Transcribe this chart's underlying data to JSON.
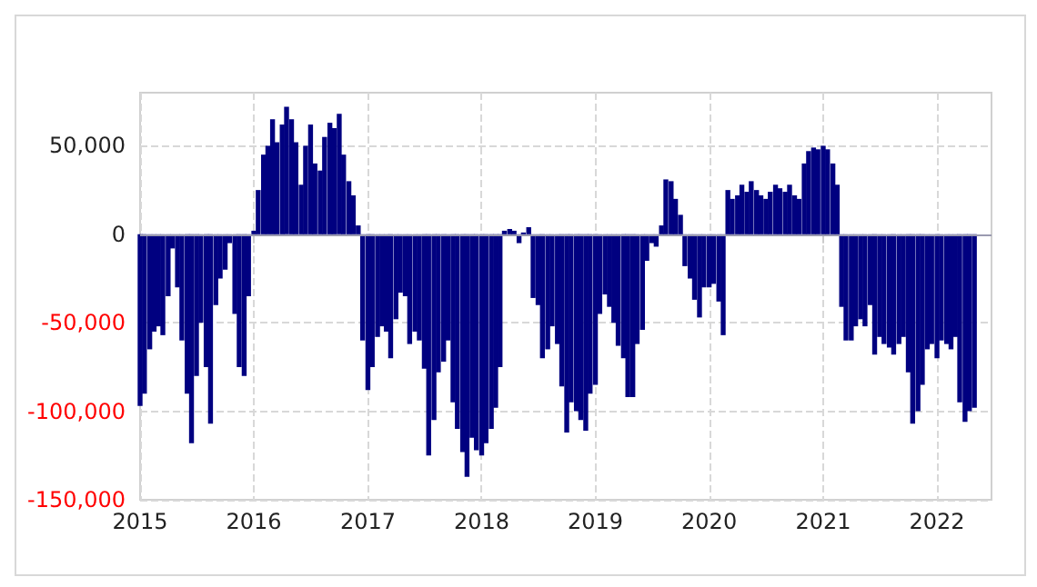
{
  "chart_data": {
    "type": "bar",
    "x": [
      "2015-01-01",
      "2015-01-15",
      "2015-02-01",
      "2015-02-15",
      "2015-03-01",
      "2015-03-15",
      "2015-04-01",
      "2015-04-15",
      "2015-05-01",
      "2015-05-15",
      "2015-06-01",
      "2015-06-15",
      "2015-07-01",
      "2015-07-15",
      "2015-08-01",
      "2015-08-15",
      "2015-09-01",
      "2015-09-15",
      "2015-10-01",
      "2015-10-15",
      "2015-11-01",
      "2015-11-15",
      "2015-12-01",
      "2015-12-15",
      "2016-01-01",
      "2016-01-15",
      "2016-02-01",
      "2016-02-15",
      "2016-03-01",
      "2016-03-15",
      "2016-04-01",
      "2016-04-15",
      "2016-05-01",
      "2016-05-15",
      "2016-06-01",
      "2016-06-15",
      "2016-07-01",
      "2016-07-15",
      "2016-08-01",
      "2016-08-15",
      "2016-09-01",
      "2016-09-15",
      "2016-10-01",
      "2016-10-15",
      "2016-11-01",
      "2016-11-15",
      "2016-12-01",
      "2016-12-15",
      "2017-01-01",
      "2017-01-15",
      "2017-02-01",
      "2017-02-15",
      "2017-03-01",
      "2017-03-15",
      "2017-04-01",
      "2017-04-15",
      "2017-05-01",
      "2017-05-15",
      "2017-06-01",
      "2017-06-15",
      "2017-07-01",
      "2017-07-15",
      "2017-08-01",
      "2017-08-15",
      "2017-09-01",
      "2017-09-15",
      "2017-10-01",
      "2017-10-15",
      "2017-11-01",
      "2017-11-15",
      "2017-12-01",
      "2017-12-15",
      "2018-01-01",
      "2018-01-15",
      "2018-02-01",
      "2018-02-15",
      "2018-03-01",
      "2018-03-15",
      "2018-04-01",
      "2018-04-15",
      "2018-05-01",
      "2018-05-15",
      "2018-06-01",
      "2018-06-15",
      "2018-07-01",
      "2018-07-15",
      "2018-08-01",
      "2018-08-15",
      "2018-09-01",
      "2018-09-15",
      "2018-10-01",
      "2018-10-15",
      "2018-11-01",
      "2018-11-15",
      "2018-12-01",
      "2018-12-15",
      "2019-01-01",
      "2019-01-15",
      "2019-02-01",
      "2019-02-15",
      "2019-03-01",
      "2019-03-15",
      "2019-04-01",
      "2019-04-15",
      "2019-05-01",
      "2019-05-15",
      "2019-06-01",
      "2019-06-15",
      "2019-07-01",
      "2019-07-15",
      "2019-08-01",
      "2019-08-15",
      "2019-09-01",
      "2019-09-15",
      "2019-10-01",
      "2019-10-15",
      "2019-11-01",
      "2019-11-15",
      "2019-12-01",
      "2019-12-15",
      "2020-01-01",
      "2020-01-15",
      "2020-02-01",
      "2020-02-15",
      "2020-03-01",
      "2020-03-15",
      "2020-04-01",
      "2020-04-15",
      "2020-05-01",
      "2020-05-15",
      "2020-06-01",
      "2020-06-15",
      "2020-07-01",
      "2020-07-15",
      "2020-08-01",
      "2020-08-15",
      "2020-09-01",
      "2020-09-15",
      "2020-10-01",
      "2020-10-15",
      "2020-11-01",
      "2020-11-15",
      "2020-12-01",
      "2020-12-15",
      "2021-01-01",
      "2021-01-15",
      "2021-02-01",
      "2021-02-15",
      "2021-03-01",
      "2021-03-15",
      "2021-04-01",
      "2021-04-15",
      "2021-05-01",
      "2021-05-15",
      "2021-06-01",
      "2021-06-15",
      "2021-07-01",
      "2021-07-15",
      "2021-08-01",
      "2021-08-15",
      "2021-09-01",
      "2021-09-15",
      "2021-10-01",
      "2021-10-15",
      "2021-11-01",
      "2021-11-15",
      "2021-12-01",
      "2021-12-15",
      "2022-01-01",
      "2022-01-15",
      "2022-02-01",
      "2022-02-15",
      "2022-03-01",
      "2022-03-15",
      "2022-04-01",
      "2022-04-15",
      "2022-05-01"
    ],
    "values": [
      -97000,
      -90000,
      -65000,
      -55000,
      -52000,
      -57000,
      -35000,
      -8000,
      -30000,
      -60000,
      -90000,
      -118000,
      -80000,
      -50000,
      -75000,
      -107000,
      -40000,
      -25000,
      -20000,
      -5000,
      -45000,
      -75000,
      -80000,
      -35000,
      2000,
      25000,
      45000,
      50000,
      65000,
      52000,
      62000,
      72000,
      65000,
      52000,
      28000,
      50000,
      62000,
      40000,
      36000,
      55000,
      63000,
      60000,
      68000,
      45000,
      30000,
      22000,
      5000,
      -60000,
      -88000,
      -75000,
      -58000,
      -52000,
      -55000,
      -70000,
      -48000,
      -33000,
      -35000,
      -62000,
      -55000,
      -60000,
      -76000,
      -125000,
      -105000,
      -78000,
      -72000,
      -60000,
      -95000,
      -110000,
      -123000,
      -137000,
      -115000,
      -122000,
      -125000,
      -118000,
      -110000,
      -98000,
      -75000,
      2000,
      3000,
      2000,
      -5000,
      1000,
      4000,
      -36000,
      -40000,
      -70000,
      -65000,
      -52000,
      -62000,
      -86000,
      -112000,
      -95000,
      -100000,
      -105000,
      -111000,
      -90000,
      -85000,
      -45000,
      -34000,
      -41000,
      -50000,
      -63000,
      -70000,
      -92000,
      -92000,
      -62000,
      -54000,
      -15000,
      -5000,
      -7000,
      5000,
      31000,
      30000,
      20000,
      11000,
      -18000,
      -25000,
      -37000,
      -47000,
      -30000,
      -30000,
      -28000,
      -38000,
      -57000,
      25000,
      20000,
      22000,
      28000,
      24000,
      30000,
      25000,
      22000,
      20000,
      24000,
      28000,
      26000,
      24000,
      28000,
      22000,
      20000,
      40000,
      47000,
      49000,
      48000,
      50000,
      48000,
      40000,
      28000,
      -41000,
      -60000,
      -60000,
      -52000,
      -48000,
      -52000,
      -40000,
      -68000,
      -58000,
      -62000,
      -64000,
      -68000,
      -62000,
      -58000,
      -78000,
      -107000,
      -100000,
      -85000,
      -65000,
      -62000,
      -70000,
      -60000,
      -62000,
      -65000,
      -58000,
      -95000,
      -106000,
      -100000,
      -98000
    ],
    "color": "#000080",
    "xlim": [
      "2015-01-01",
      "2022-06-25"
    ],
    "xticks": [
      {
        "value": "2015",
        "label": "2015"
      },
      {
        "value": "2016",
        "label": "2016"
      },
      {
        "value": "2017",
        "label": "2017"
      },
      {
        "value": "2018",
        "label": "2018"
      },
      {
        "value": "2019",
        "label": "2019"
      },
      {
        "value": "2020",
        "label": "2020"
      },
      {
        "value": "2021",
        "label": "2021"
      },
      {
        "value": "2022",
        "label": "2022"
      }
    ],
    "ylim": [
      -150000,
      80000
    ],
    "yticks": [
      {
        "value": -150000,
        "label": "-150,000"
      },
      {
        "value": -100000,
        "label": "-100,000"
      },
      {
        "value": -50000,
        "label": "-50,000"
      },
      {
        "value": 0,
        "label": "0"
      },
      {
        "value": 50000,
        "label": "50,000"
      }
    ],
    "ref_lines": [
      {
        "axis": "y",
        "value": 0,
        "color": "#9a9ab0"
      }
    ],
    "grid": true
  }
}
